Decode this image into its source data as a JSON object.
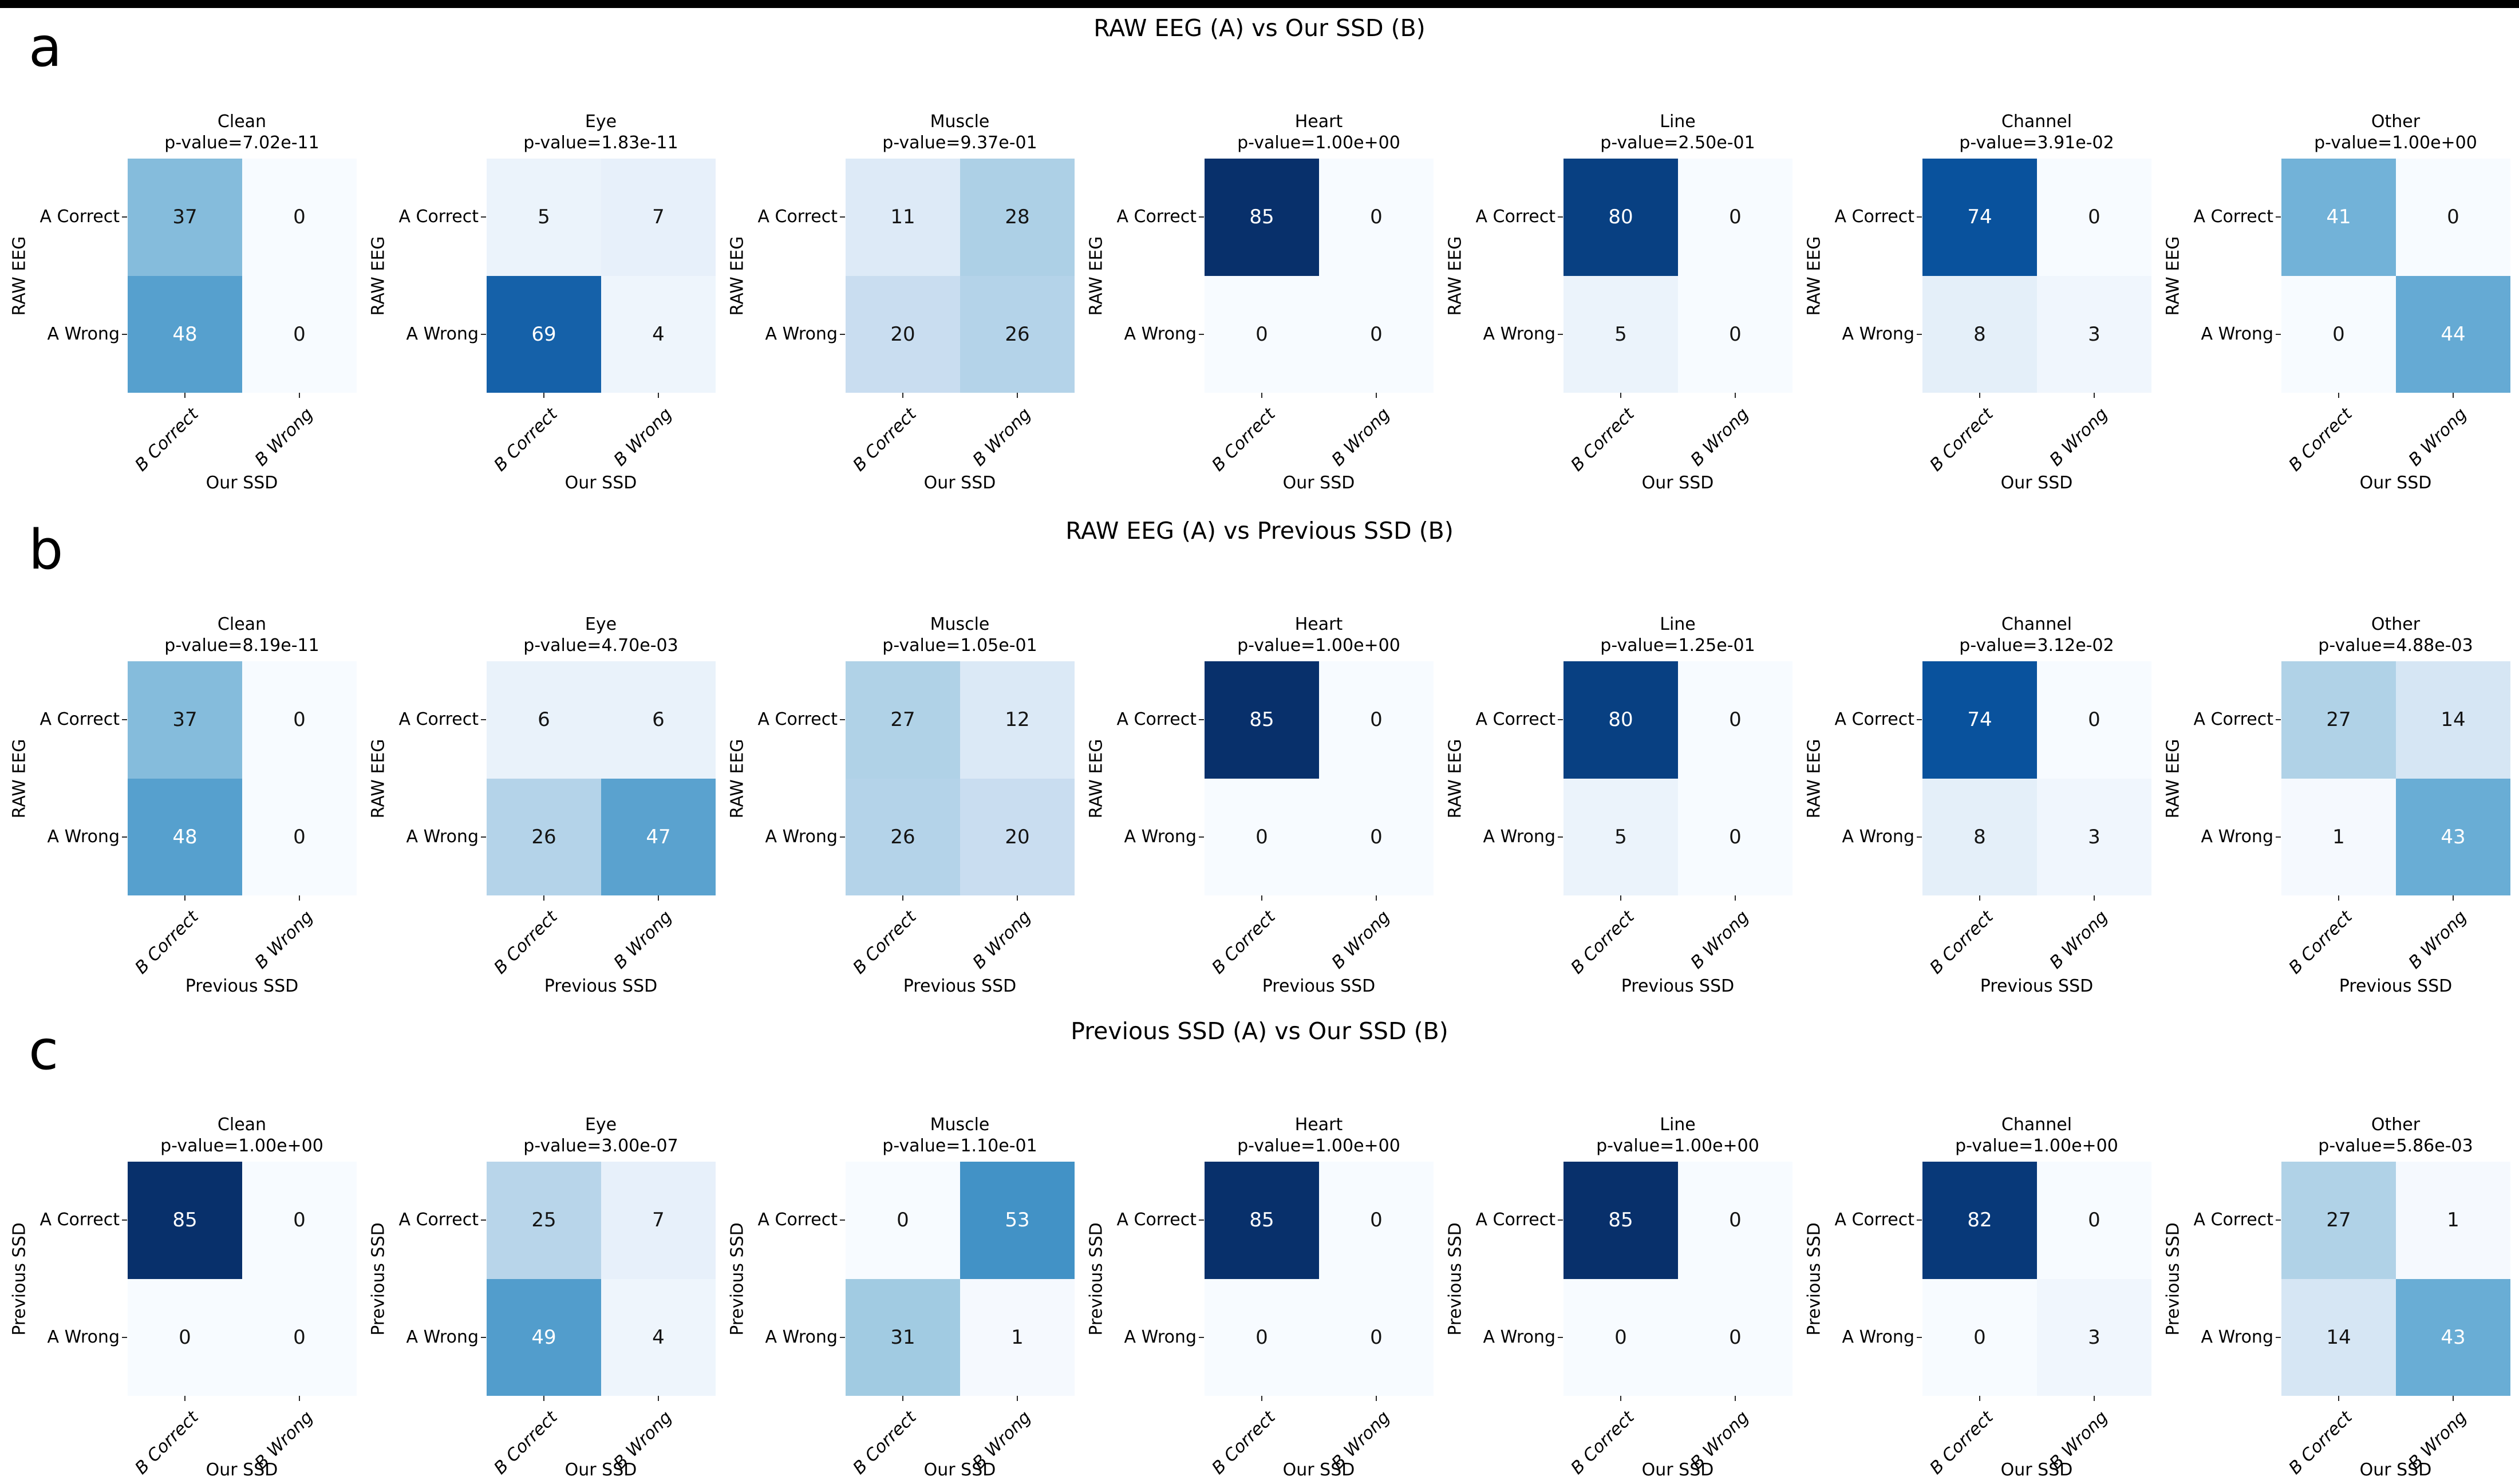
{
  "page": {
    "background": "#ffffff",
    "top_bar_color": "#000000"
  },
  "chart_data": {
    "type": "heatmap",
    "colormap": "Blues",
    "vmin": 0,
    "vmax": 85,
    "colormap_anchors": [
      "#f7fbff",
      "#deebf7",
      "#c6dbef",
      "#9ecae1",
      "#6baed6",
      "#4292c6",
      "#2171b5",
      "#08519c",
      "#08306b"
    ],
    "annotation_dark_color": "#141414",
    "annotation_light_color": "#ffffff",
    "tick_color": "#262626",
    "row_tick_labels": [
      "A Correct",
      "A Wrong"
    ],
    "col_tick_labels": [
      "B Correct",
      "B Wrong"
    ],
    "sections": [
      {
        "panel_letter": "a",
        "title": "RAW EEG (A) vs Our SSD (B)",
        "ylabel": "RAW EEG",
        "xlabel": "Our SSD",
        "panels": [
          {
            "condition": "Clean",
            "p_value_label": "p-value=7.02e-11",
            "matrix": [
              [
                37,
                0
              ],
              [
                48,
                0
              ]
            ]
          },
          {
            "condition": "Eye",
            "p_value_label": "p-value=1.83e-11",
            "matrix": [
              [
                5,
                7
              ],
              [
                69,
                4
              ]
            ]
          },
          {
            "condition": "Muscle",
            "p_value_label": "p-value=9.37e-01",
            "matrix": [
              [
                11,
                28
              ],
              [
                20,
                26
              ]
            ]
          },
          {
            "condition": "Heart",
            "p_value_label": "p-value=1.00e+00",
            "matrix": [
              [
                85,
                0
              ],
              [
                0,
                0
              ]
            ]
          },
          {
            "condition": "Line",
            "p_value_label": "p-value=2.50e-01",
            "matrix": [
              [
                80,
                0
              ],
              [
                5,
                0
              ]
            ]
          },
          {
            "condition": "Channel",
            "p_value_label": "p-value=3.91e-02",
            "matrix": [
              [
                74,
                0
              ],
              [
                8,
                3
              ]
            ]
          },
          {
            "condition": "Other",
            "p_value_label": "p-value=1.00e+00",
            "matrix": [
              [
                41,
                0
              ],
              [
                0,
                44
              ]
            ]
          }
        ]
      },
      {
        "panel_letter": "b",
        "title": "RAW EEG (A) vs Previous SSD (B)",
        "ylabel": "RAW EEG",
        "xlabel": "Previous SSD",
        "panels": [
          {
            "condition": "Clean",
            "p_value_label": "p-value=8.19e-11",
            "matrix": [
              [
                37,
                0
              ],
              [
                48,
                0
              ]
            ]
          },
          {
            "condition": "Eye",
            "p_value_label": "p-value=4.70e-03",
            "matrix": [
              [
                6,
                6
              ],
              [
                26,
                47
              ]
            ]
          },
          {
            "condition": "Muscle",
            "p_value_label": "p-value=1.05e-01",
            "matrix": [
              [
                27,
                12
              ],
              [
                26,
                20
              ]
            ]
          },
          {
            "condition": "Heart",
            "p_value_label": "p-value=1.00e+00",
            "matrix": [
              [
                85,
                0
              ],
              [
                0,
                0
              ]
            ]
          },
          {
            "condition": "Line",
            "p_value_label": "p-value=1.25e-01",
            "matrix": [
              [
                80,
                0
              ],
              [
                5,
                0
              ]
            ]
          },
          {
            "condition": "Channel",
            "p_value_label": "p-value=3.12e-02",
            "matrix": [
              [
                74,
                0
              ],
              [
                8,
                3
              ]
            ]
          },
          {
            "condition": "Other",
            "p_value_label": "p-value=4.88e-03",
            "matrix": [
              [
                27,
                14
              ],
              [
                1,
                43
              ]
            ]
          }
        ]
      },
      {
        "panel_letter": "c",
        "title": "Previous SSD (A) vs Our SSD (B)",
        "ylabel": "Previous SSD",
        "xlabel": "Our SSD",
        "panels": [
          {
            "condition": "Clean",
            "p_value_label": "p-value=1.00e+00",
            "matrix": [
              [
                85,
                0
              ],
              [
                0,
                0
              ]
            ]
          },
          {
            "condition": "Eye",
            "p_value_label": "p-value=3.00e-07",
            "matrix": [
              [
                25,
                7
              ],
              [
                49,
                4
              ]
            ]
          },
          {
            "condition": "Muscle",
            "p_value_label": "p-value=1.10e-01",
            "matrix": [
              [
                0,
                53
              ],
              [
                31,
                1
              ]
            ]
          },
          {
            "condition": "Heart",
            "p_value_label": "p-value=1.00e+00",
            "matrix": [
              [
                85,
                0
              ],
              [
                0,
                0
              ]
            ]
          },
          {
            "condition": "Line",
            "p_value_label": "p-value=1.00e+00",
            "matrix": [
              [
                85,
                0
              ],
              [
                0,
                0
              ]
            ]
          },
          {
            "condition": "Channel",
            "p_value_label": "p-value=1.00e+00",
            "matrix": [
              [
                82,
                0
              ],
              [
                0,
                3
              ]
            ]
          },
          {
            "condition": "Other",
            "p_value_label": "p-value=5.86e-03",
            "matrix": [
              [
                27,
                1
              ],
              [
                14,
                43
              ]
            ]
          }
        ]
      }
    ]
  }
}
